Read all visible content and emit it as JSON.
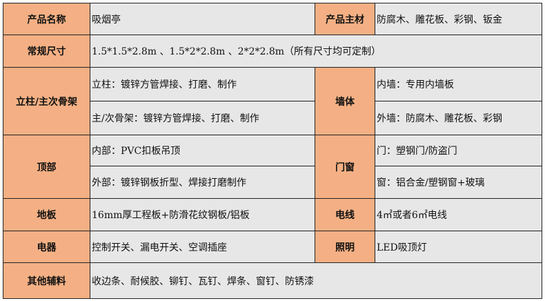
{
  "rows": {
    "name": {
      "label": "产品名称",
      "value": "吸烟亭",
      "label2": "产品主材",
      "value2": "防腐木、雕花板、彩钢、钣金"
    },
    "size": {
      "label": "常规尺寸",
      "value": "1.5*1.5*2.8m 、1.5*2*2.8m 、2*2*2.8m（所有尺寸均可定制）"
    },
    "frame": {
      "label": "立柱/主次骨架",
      "value_a": "立柱：镀锌方管焊接、打磨、制作",
      "value_b": "主/次骨架：镀锌方管焊接、打磨、制作",
      "label2": "墙体",
      "value2_a": "内墙：专用内墙板",
      "value2_b": "外墙：防腐木、雕花板、彩钢"
    },
    "roof": {
      "label": "顶部",
      "value_a": "内部：PVC扣板吊顶",
      "value_b": "外部：镀锌钢板折型、焊接打磨制作",
      "label2": "门窗",
      "value2_a": "门：塑钢门/防盗门",
      "value2_b": "窗：铝合金/塑钢窗+玻璃"
    },
    "floor": {
      "label": "地板",
      "value": "16mm厚工程板+防滑花纹钢板/铝板",
      "label2": "电线",
      "value2": "4㎡或者6㎡电线"
    },
    "electric": {
      "label": "电器",
      "value": "控制开关、漏电开关、空调插座",
      "label2": "照明",
      "value2": "LED吸顶灯"
    },
    "other": {
      "label": "其他辅料",
      "value": "收边条、耐候胶、铆钉、瓦钉、焊条、窗钉、防锈漆"
    }
  },
  "colors": {
    "header": "#f4b084",
    "cell": "#e7e7e7"
  }
}
